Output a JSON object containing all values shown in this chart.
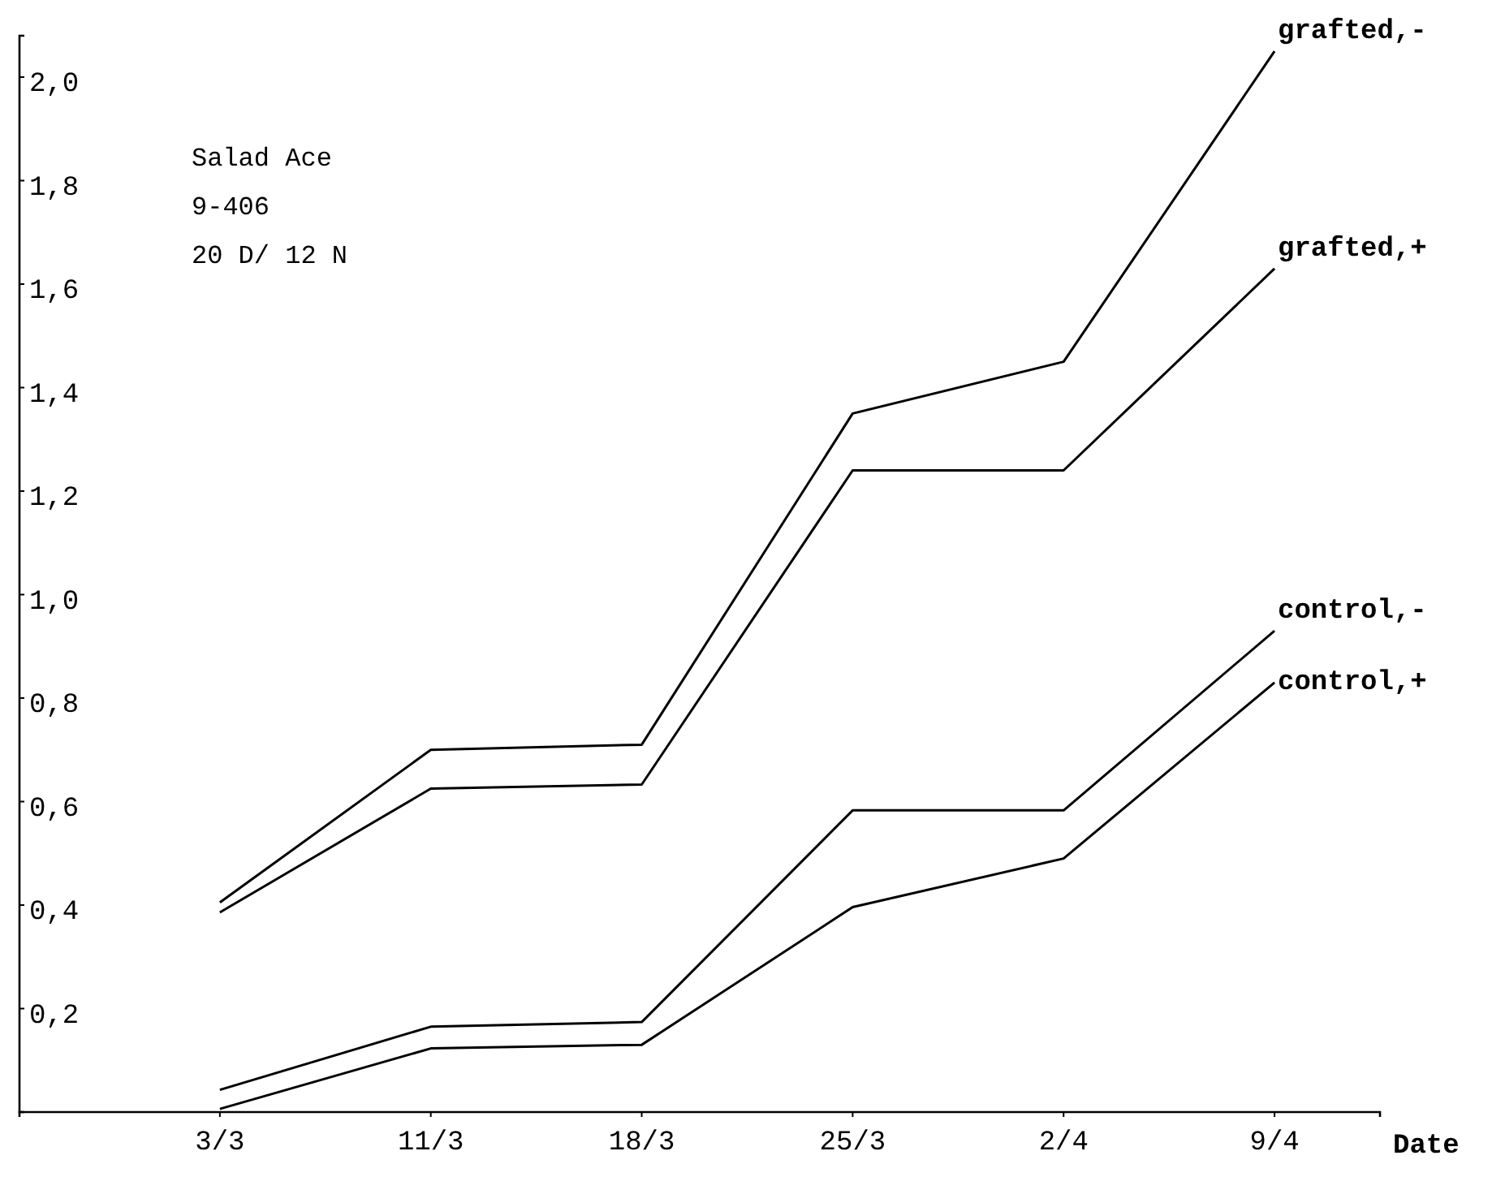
{
  "chart_data": {
    "type": "line",
    "xlabel": "Date",
    "categories": [
      "3/3",
      "11/3",
      "18/3",
      "25/3",
      "2/4",
      "9/4"
    ],
    "series": [
      {
        "name": "grafted,-",
        "color": "#000000",
        "values": [
          0.405,
          0.7,
          0.71,
          1.35,
          1.45,
          2.05
        ]
      },
      {
        "name": "grafted,+",
        "color": "#000000",
        "values": [
          0.386,
          0.625,
          0.633,
          1.24,
          1.24,
          1.63
        ]
      },
      {
        "name": "control,-",
        "color": "#000000",
        "values": [
          0.043,
          0.165,
          0.174,
          0.583,
          0.583,
          0.93
        ]
      },
      {
        "name": "control,+",
        "color": "#000000",
        "values": [
          0.006,
          0.123,
          0.13,
          0.396,
          0.49,
          0.83
        ]
      }
    ],
    "ylim": [
      0,
      2.08
    ],
    "yticks": [
      {
        "value": 0.2,
        "label": "0,2"
      },
      {
        "value": 0.4,
        "label": "0,4"
      },
      {
        "value": 0.6,
        "label": "0,6"
      },
      {
        "value": 0.8,
        "label": "0,8"
      },
      {
        "value": 1.0,
        "label": "1,0"
      },
      {
        "value": 1.2,
        "label": "1,2"
      },
      {
        "value": 1.4,
        "label": "1,4"
      },
      {
        "value": 1.6,
        "label": "1,6"
      },
      {
        "value": 1.8,
        "label": "1,8"
      },
      {
        "value": 2.0,
        "label": "2,0"
      }
    ],
    "annotations": [
      "Salad Ace",
      "9-406",
      "20 D/ 12 N"
    ],
    "grid": false,
    "legend": false,
    "marker": "none",
    "line_style": "solid"
  }
}
